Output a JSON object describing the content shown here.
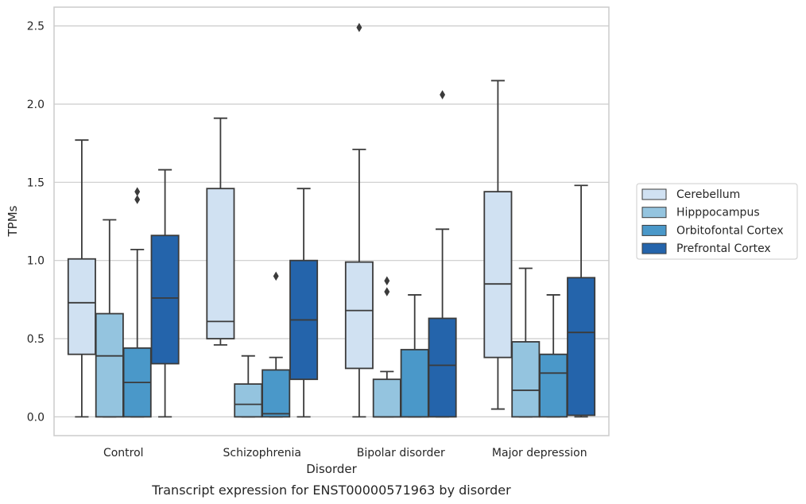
{
  "chart_data": {
    "type": "boxplot",
    "caption": "Transcript expression for ENST00000571963 by disorder",
    "xlabel": "Disorder",
    "ylabel": "TPMs",
    "ylim": [
      -0.12,
      2.62
    ],
    "yticks": [
      0.0,
      0.5,
      1.0,
      1.5,
      2.0,
      2.5
    ],
    "ytick_labels": [
      "0.0",
      "0.5",
      "1.0",
      "1.5",
      "2.0",
      "2.5"
    ],
    "grid": "horizontal",
    "legend_placement": "right",
    "categories": [
      "Control",
      "Schizophrenia",
      "Bipolar disorder",
      "Major depression"
    ],
    "series": [
      {
        "name": "Cerebellum",
        "color": "#d0e1f2",
        "boxes": [
          {
            "min": 0.0,
            "q1": 0.4,
            "median": 0.73,
            "q3": 1.01,
            "max": 1.77,
            "outliers": []
          },
          {
            "min": 0.46,
            "q1": 0.5,
            "median": 0.61,
            "q3": 1.46,
            "max": 1.91,
            "outliers": []
          },
          {
            "min": 0.0,
            "q1": 0.31,
            "median": 0.68,
            "q3": 0.99,
            "max": 1.71,
            "outliers": [
              2.49
            ]
          },
          {
            "min": 0.05,
            "q1": 0.38,
            "median": 0.85,
            "q3": 1.44,
            "max": 2.15,
            "outliers": []
          }
        ]
      },
      {
        "name": "Hipppocampus",
        "color": "#94c4df",
        "boxes": [
          {
            "min": 0.0,
            "q1": 0.0,
            "median": 0.39,
            "q3": 0.66,
            "max": 1.26,
            "outliers": []
          },
          {
            "min": 0.0,
            "q1": 0.0,
            "median": 0.08,
            "q3": 0.21,
            "max": 0.39,
            "outliers": []
          },
          {
            "min": 0.0,
            "q1": 0.0,
            "median": 0.0,
            "q3": 0.24,
            "max": 0.29,
            "outliers": [
              0.8,
              0.87
            ]
          },
          {
            "min": 0.0,
            "q1": 0.0,
            "median": 0.17,
            "q3": 0.48,
            "max": 0.95,
            "outliers": []
          }
        ]
      },
      {
        "name": "Orbitofontal Cortex",
        "color": "#4a98c9",
        "boxes": [
          {
            "min": 0.0,
            "q1": 0.0,
            "median": 0.22,
            "q3": 0.44,
            "max": 1.07,
            "outliers": [
              1.39,
              1.44
            ]
          },
          {
            "min": 0.0,
            "q1": 0.0,
            "median": 0.02,
            "q3": 0.3,
            "max": 0.38,
            "outliers": [
              0.9
            ]
          },
          {
            "min": 0.0,
            "q1": 0.0,
            "median": 0.0,
            "q3": 0.43,
            "max": 0.78,
            "outliers": []
          },
          {
            "min": 0.0,
            "q1": 0.0,
            "median": 0.28,
            "q3": 0.4,
            "max": 0.78,
            "outliers": []
          }
        ]
      },
      {
        "name": "Prefrontal Cortex",
        "color": "#2464ab",
        "boxes": [
          {
            "min": 0.0,
            "q1": 0.34,
            "median": 0.76,
            "q3": 1.16,
            "max": 1.58,
            "outliers": []
          },
          {
            "min": 0.0,
            "q1": 0.24,
            "median": 0.62,
            "q3": 1.0,
            "max": 1.46,
            "outliers": []
          },
          {
            "min": 0.0,
            "q1": 0.0,
            "median": 0.33,
            "q3": 0.63,
            "max": 1.2,
            "outliers": [
              2.06
            ]
          },
          {
            "min": 0.0,
            "q1": 0.01,
            "median": 0.54,
            "q3": 0.89,
            "max": 1.48,
            "outliers": []
          }
        ]
      }
    ]
  }
}
